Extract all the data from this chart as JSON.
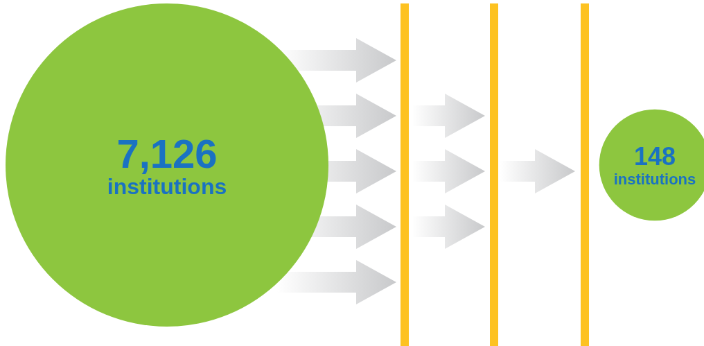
{
  "chart_data": {
    "type": "other",
    "categories": [
      "institutions",
      "institutions"
    ],
    "values": [
      7126,
      148
    ],
    "value_labels": [
      "7,126",
      "148"
    ],
    "colors": [
      "#8dc63f",
      "#8dc63f"
    ]
  }
}
